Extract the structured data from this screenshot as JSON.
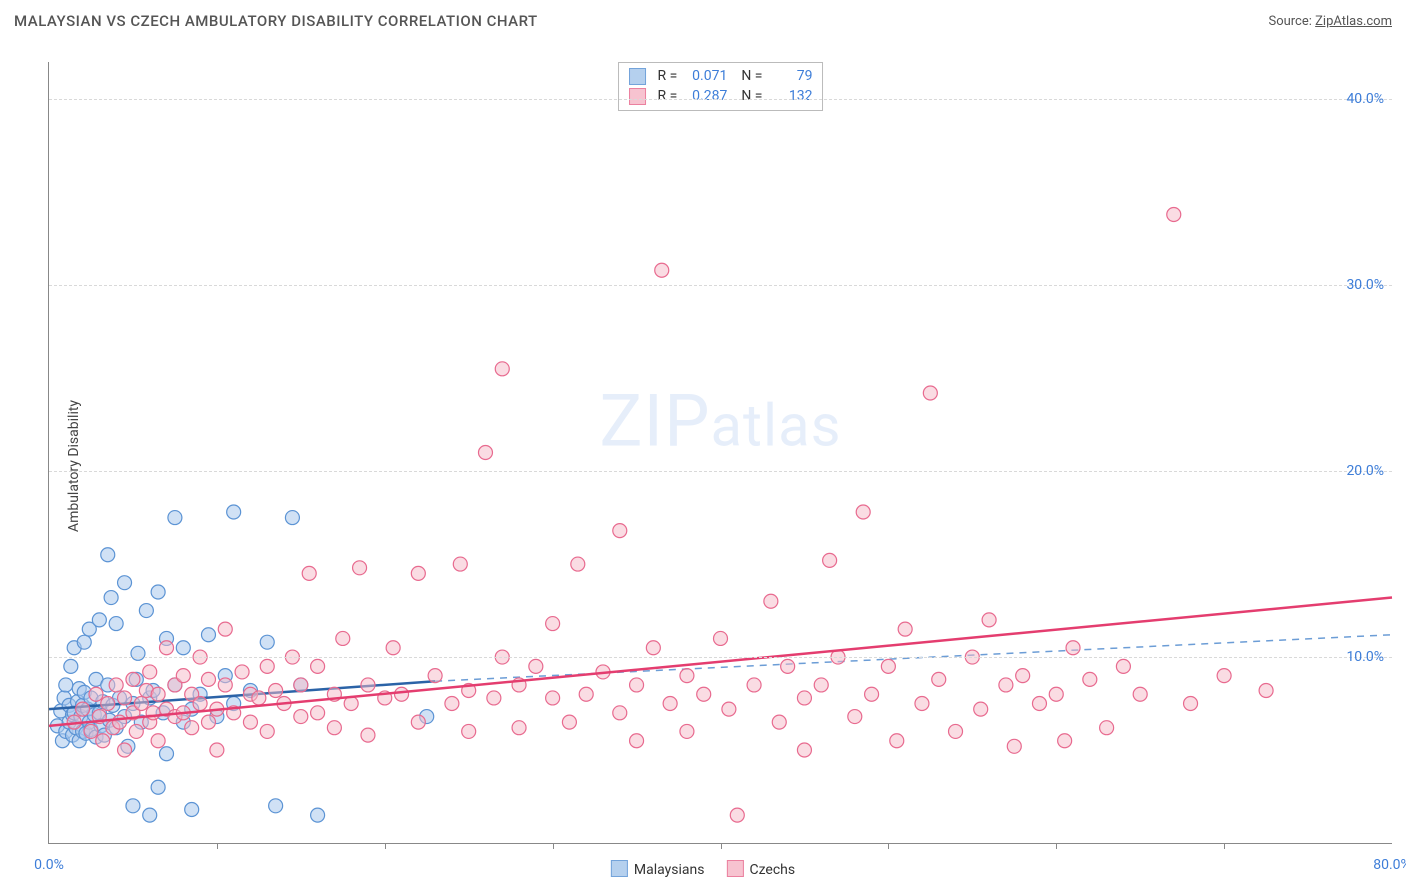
{
  "header": {
    "title": "MALAYSIAN VS CZECH AMBULATORY DISABILITY CORRELATION CHART",
    "source_prefix": "Source: ",
    "source_link": "ZipAtlas.com"
  },
  "chart": {
    "type": "scatter",
    "ylabel": "Ambulatory Disability",
    "xlim": [
      0,
      80
    ],
    "ylim": [
      0,
      42
    ],
    "xtick_labels": [
      {
        "v": 0,
        "t": "0.0%"
      },
      {
        "v": 80,
        "t": "80.0%"
      }
    ],
    "xtick_minor": [
      10,
      20,
      30,
      40,
      50,
      60,
      70
    ],
    "ytick_labels": [
      {
        "v": 10,
        "t": "10.0%"
      },
      {
        "v": 20,
        "t": "20.0%"
      },
      {
        "v": 30,
        "t": "30.0%"
      },
      {
        "v": 40,
        "t": "40.0%"
      }
    ],
    "grid_color": "#d9d9d9",
    "background_color": "#ffffff",
    "axis_color": "#888888",
    "tick_label_color": "#3d7dd8",
    "marker_radius": 7,
    "marker_stroke_width": 1.2,
    "trend_line_width": 2.5,
    "watermark": {
      "big": "ZIP",
      "small": "atlas"
    },
    "legend_box": {
      "rows": [
        {
          "r_label": "R =",
          "r": "0.071",
          "n_label": "N =",
          "n": "79"
        },
        {
          "r_label": "R =",
          "r": "0.287",
          "n_label": "N =",
          "n": "132"
        }
      ]
    },
    "legend_bottom": {
      "items": [
        {
          "label": "Malaysians"
        },
        {
          "label": "Czechs"
        }
      ]
    },
    "series": [
      {
        "name": "Malaysians",
        "fill": "#a9c8ec",
        "stroke": "#5b93d4",
        "fill_opacity": 0.55,
        "trend": {
          "x1": 0,
          "y1": 7.2,
          "x2": 23,
          "y2": 8.7,
          "dashed": false,
          "color": "#2b63a7",
          "ext_x1": 23,
          "ext_y1": 8.7,
          "ext_x2": 80,
          "ext_y2": 11.2,
          "ext_dashed": true,
          "ext_color": "#6c9dd6"
        },
        "points": [
          [
            0.5,
            6.3
          ],
          [
            0.7,
            7.1
          ],
          [
            0.8,
            5.5
          ],
          [
            0.9,
            7.8
          ],
          [
            1.0,
            6.0
          ],
          [
            1.0,
            8.5
          ],
          [
            1.2,
            6.5
          ],
          [
            1.2,
            7.4
          ],
          [
            1.3,
            9.5
          ],
          [
            1.4,
            5.8
          ],
          [
            1.4,
            6.9
          ],
          [
            1.5,
            7.0
          ],
          [
            1.5,
            10.5
          ],
          [
            1.6,
            6.2
          ],
          [
            1.7,
            7.6
          ],
          [
            1.8,
            5.5
          ],
          [
            1.8,
            8.3
          ],
          [
            1.9,
            6.8
          ],
          [
            2.0,
            6.0
          ],
          [
            2.0,
            7.4
          ],
          [
            2.1,
            8.1
          ],
          [
            2.1,
            10.8
          ],
          [
            2.2,
            5.9
          ],
          [
            2.3,
            7.2
          ],
          [
            2.4,
            6.5
          ],
          [
            2.4,
            11.5
          ],
          [
            2.5,
            6.1
          ],
          [
            2.5,
            7.8
          ],
          [
            2.7,
            6.9
          ],
          [
            2.8,
            5.7
          ],
          [
            2.8,
            8.8
          ],
          [
            3.0,
            7.0
          ],
          [
            3.0,
            12.0
          ],
          [
            3.1,
            6.3
          ],
          [
            3.2,
            7.6
          ],
          [
            3.3,
            5.8
          ],
          [
            3.5,
            8.5
          ],
          [
            3.5,
            15.5
          ],
          [
            3.6,
            6.6
          ],
          [
            3.7,
            13.2
          ],
          [
            3.8,
            7.4
          ],
          [
            4.0,
            6.2
          ],
          [
            4.0,
            11.8
          ],
          [
            4.2,
            7.8
          ],
          [
            4.5,
            6.8
          ],
          [
            4.5,
            14.0
          ],
          [
            4.7,
            5.2
          ],
          [
            5.0,
            7.5
          ],
          [
            5.0,
            2.0
          ],
          [
            5.2,
            8.8
          ],
          [
            5.3,
            10.2
          ],
          [
            5.5,
            6.5
          ],
          [
            5.8,
            12.5
          ],
          [
            6.0,
            7.8
          ],
          [
            6.0,
            1.5
          ],
          [
            6.2,
            8.2
          ],
          [
            6.5,
            13.5
          ],
          [
            6.5,
            3.0
          ],
          [
            6.8,
            7.0
          ],
          [
            7.0,
            11.0
          ],
          [
            7.0,
            4.8
          ],
          [
            7.5,
            8.5
          ],
          [
            7.5,
            17.5
          ],
          [
            8.0,
            6.5
          ],
          [
            8.0,
            10.5
          ],
          [
            8.5,
            7.2
          ],
          [
            8.5,
            1.8
          ],
          [
            9.0,
            8.0
          ],
          [
            9.5,
            11.2
          ],
          [
            10.0,
            6.8
          ],
          [
            10.5,
            9.0
          ],
          [
            11.0,
            7.5
          ],
          [
            11.0,
            17.8
          ],
          [
            12.0,
            8.2
          ],
          [
            13.0,
            10.8
          ],
          [
            13.5,
            2.0
          ],
          [
            14.5,
            17.5
          ],
          [
            15.0,
            8.5
          ],
          [
            16.0,
            1.5
          ],
          [
            22.5,
            6.8
          ]
        ]
      },
      {
        "name": "Czechs",
        "fill": "#f6b9c8",
        "stroke": "#e86a8f",
        "fill_opacity": 0.5,
        "trend": {
          "x1": 0,
          "y1": 6.3,
          "x2": 80,
          "y2": 13.2,
          "dashed": false,
          "color": "#e43d6f"
        },
        "points": [
          [
            1.5,
            6.5
          ],
          [
            2.0,
            7.2
          ],
          [
            2.5,
            6.0
          ],
          [
            2.8,
            8.0
          ],
          [
            3.0,
            6.8
          ],
          [
            3.2,
            5.5
          ],
          [
            3.5,
            7.5
          ],
          [
            3.8,
            6.2
          ],
          [
            4.0,
            8.5
          ],
          [
            4.2,
            6.5
          ],
          [
            4.5,
            7.8
          ],
          [
            4.5,
            5.0
          ],
          [
            5.0,
            7.0
          ],
          [
            5.0,
            8.8
          ],
          [
            5.2,
            6.0
          ],
          [
            5.5,
            7.5
          ],
          [
            5.8,
            8.2
          ],
          [
            6.0,
            6.5
          ],
          [
            6.0,
            9.2
          ],
          [
            6.2,
            7.0
          ],
          [
            6.5,
            5.5
          ],
          [
            6.5,
            8.0
          ],
          [
            7.0,
            7.2
          ],
          [
            7.0,
            10.5
          ],
          [
            7.5,
            6.8
          ],
          [
            7.5,
            8.5
          ],
          [
            8.0,
            7.0
          ],
          [
            8.0,
            9.0
          ],
          [
            8.5,
            6.2
          ],
          [
            8.5,
            8.0
          ],
          [
            9.0,
            7.5
          ],
          [
            9.0,
            10.0
          ],
          [
            9.5,
            6.5
          ],
          [
            9.5,
            8.8
          ],
          [
            10.0,
            7.2
          ],
          [
            10.0,
            5.0
          ],
          [
            10.5,
            8.5
          ],
          [
            10.5,
            11.5
          ],
          [
            11.0,
            7.0
          ],
          [
            11.5,
            9.2
          ],
          [
            12.0,
            6.5
          ],
          [
            12.0,
            8.0
          ],
          [
            12.5,
            7.8
          ],
          [
            13.0,
            9.5
          ],
          [
            13.0,
            6.0
          ],
          [
            13.5,
            8.2
          ],
          [
            14.0,
            7.5
          ],
          [
            14.5,
            10.0
          ],
          [
            15.0,
            6.8
          ],
          [
            15.0,
            8.5
          ],
          [
            15.5,
            14.5
          ],
          [
            16.0,
            7.0
          ],
          [
            16.0,
            9.5
          ],
          [
            17.0,
            8.0
          ],
          [
            17.0,
            6.2
          ],
          [
            17.5,
            11.0
          ],
          [
            18.0,
            7.5
          ],
          [
            18.5,
            14.8
          ],
          [
            19.0,
            8.5
          ],
          [
            19.0,
            5.8
          ],
          [
            20.0,
            7.8
          ],
          [
            20.5,
            10.5
          ],
          [
            21.0,
            8.0
          ],
          [
            22.0,
            6.5
          ],
          [
            22.0,
            14.5
          ],
          [
            23.0,
            9.0
          ],
          [
            24.0,
            7.5
          ],
          [
            24.5,
            15.0
          ],
          [
            25.0,
            8.2
          ],
          [
            25.0,
            6.0
          ],
          [
            26.0,
            21.0
          ],
          [
            26.5,
            7.8
          ],
          [
            27.0,
            10.0
          ],
          [
            27.0,
            25.5
          ],
          [
            28.0,
            8.5
          ],
          [
            28.0,
            6.2
          ],
          [
            29.0,
            9.5
          ],
          [
            30.0,
            7.8
          ],
          [
            30.0,
            11.8
          ],
          [
            31.0,
            6.5
          ],
          [
            31.5,
            15.0
          ],
          [
            32.0,
            8.0
          ],
          [
            33.0,
            9.2
          ],
          [
            34.0,
            7.0
          ],
          [
            34.0,
            16.8
          ],
          [
            35.0,
            8.5
          ],
          [
            35.0,
            5.5
          ],
          [
            36.0,
            10.5
          ],
          [
            36.5,
            30.8
          ],
          [
            37.0,
            7.5
          ],
          [
            38.0,
            9.0
          ],
          [
            38.0,
            6.0
          ],
          [
            39.0,
            8.0
          ],
          [
            40.0,
            11.0
          ],
          [
            40.5,
            7.2
          ],
          [
            41.0,
            1.5
          ],
          [
            42.0,
            8.5
          ],
          [
            43.0,
            13.0
          ],
          [
            43.5,
            6.5
          ],
          [
            44.0,
            9.5
          ],
          [
            45.0,
            7.8
          ],
          [
            45.0,
            5.0
          ],
          [
            46.0,
            8.5
          ],
          [
            46.5,
            15.2
          ],
          [
            47.0,
            10.0
          ],
          [
            48.0,
            6.8
          ],
          [
            48.5,
            17.8
          ],
          [
            49.0,
            8.0
          ],
          [
            50.0,
            9.5
          ],
          [
            50.5,
            5.5
          ],
          [
            51.0,
            11.5
          ],
          [
            52.0,
            7.5
          ],
          [
            52.5,
            24.2
          ],
          [
            53.0,
            8.8
          ],
          [
            54.0,
            6.0
          ],
          [
            55.0,
            10.0
          ],
          [
            55.5,
            7.2
          ],
          [
            56.0,
            12.0
          ],
          [
            57.0,
            8.5
          ],
          [
            57.5,
            5.2
          ],
          [
            58.0,
            9.0
          ],
          [
            59.0,
            7.5
          ],
          [
            60.0,
            8.0
          ],
          [
            60.5,
            5.5
          ],
          [
            61.0,
            10.5
          ],
          [
            62.0,
            8.8
          ],
          [
            63.0,
            6.2
          ],
          [
            64.0,
            9.5
          ],
          [
            65.0,
            8.0
          ],
          [
            67.0,
            33.8
          ],
          [
            68.0,
            7.5
          ],
          [
            70.0,
            9.0
          ],
          [
            72.5,
            8.2
          ]
        ]
      }
    ]
  }
}
